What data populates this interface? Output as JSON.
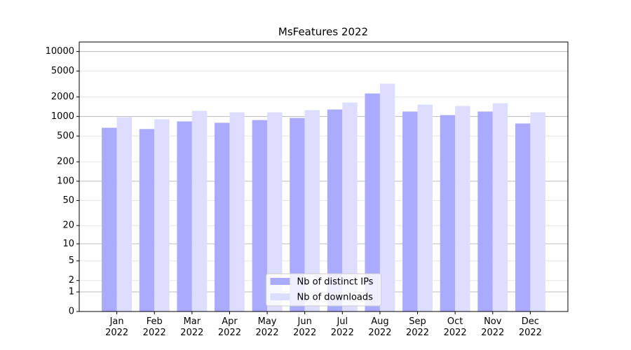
{
  "chart_data": {
    "type": "bar",
    "title": "MsFeatures 2022",
    "categories": [
      "Jan 2022",
      "Feb 2022",
      "Mar 2022",
      "Apr 2022",
      "May 2022",
      "Jun 2022",
      "Jul 2022",
      "Aug 2022",
      "Sep 2022",
      "Oct 2022",
      "Nov 2022",
      "Dec 2022"
    ],
    "series": [
      {
        "name": "Nb of distinct IPs",
        "color": "#aaaaff",
        "values": [
          670,
          640,
          840,
          800,
          880,
          950,
          1280,
          2260,
          1190,
          1050,
          1190,
          780
        ]
      },
      {
        "name": "Nb of downloads",
        "color": "#ddddff",
        "values": [
          975,
          905,
          1220,
          1160,
          1160,
          1250,
          1640,
          3200,
          1520,
          1450,
          1600,
          1160
        ]
      }
    ],
    "yscale": "log1p",
    "ylim": [
      0,
      14000
    ],
    "yticks": [
      0,
      1,
      2,
      5,
      10,
      20,
      50,
      100,
      200,
      500,
      1000,
      2000,
      5000,
      10000
    ],
    "grid": true,
    "legend": "lower center"
  }
}
